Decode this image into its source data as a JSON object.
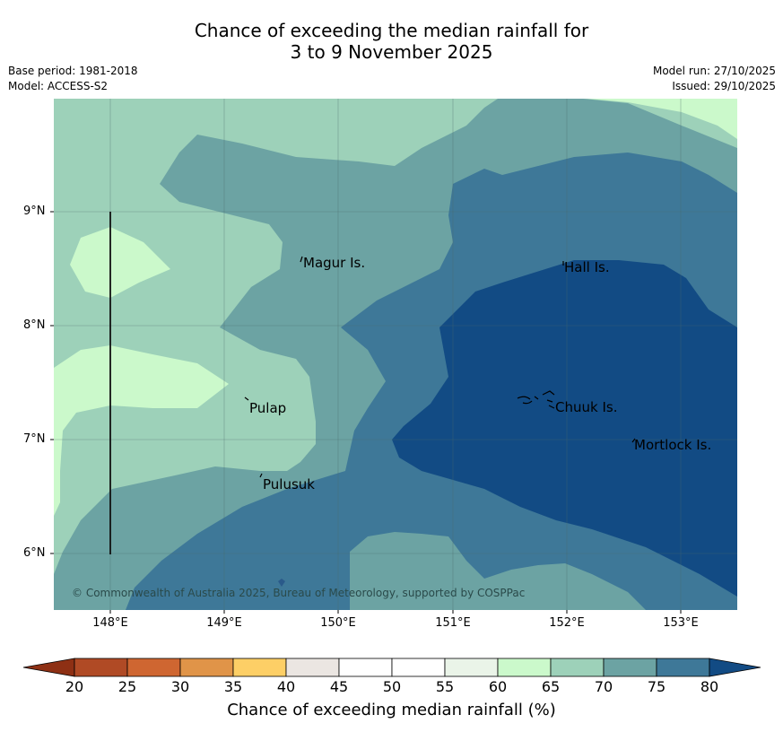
{
  "header": {
    "title_line1": "Chance of exceeding the median rainfall for",
    "title_line2": "3 to 9 November 2025",
    "base_period": "Base period: 1981-2018",
    "model": "Model: ACCESS-S2",
    "model_run": "Model run: 27/10/2025",
    "issued": "Issued: 29/10/2025"
  },
  "map": {
    "lat_labels": [
      "9°N",
      "8°N",
      "7°N",
      "6°N"
    ],
    "lon_labels": [
      "148°E",
      "149°E",
      "150°E",
      "151°E",
      "152°E",
      "153°E"
    ],
    "places": [
      {
        "name": "Magur Is."
      },
      {
        "name": "Hall Is."
      },
      {
        "name": "Pulap"
      },
      {
        "name": "Chuuk Is."
      },
      {
        "name": "Mortlock Is."
      },
      {
        "name": "Pulusuk"
      }
    ],
    "copyright": "© Commonwealth of Australia 2025, Bureau of Meteorology, supported by COSPPac"
  },
  "colorbar": {
    "ticks": [
      "20",
      "25",
      "30",
      "35",
      "40",
      "45",
      "50",
      "55",
      "60",
      "65",
      "70",
      "75",
      "80"
    ],
    "colors": [
      "#b04a25",
      "#cf6631",
      "#e09448",
      "#fdcf66",
      "#ebe6e2",
      "#ffffff",
      "#ffffff",
      "#eaf4e8",
      "#cbf9cb",
      "#9dd1b9",
      "#6ca3a3",
      "#3e7898"
    ],
    "low_extend_color": "#8e3014",
    "high_extend_color": "#124b84",
    "label": "Chance of exceeding median rainfall (%)"
  }
}
